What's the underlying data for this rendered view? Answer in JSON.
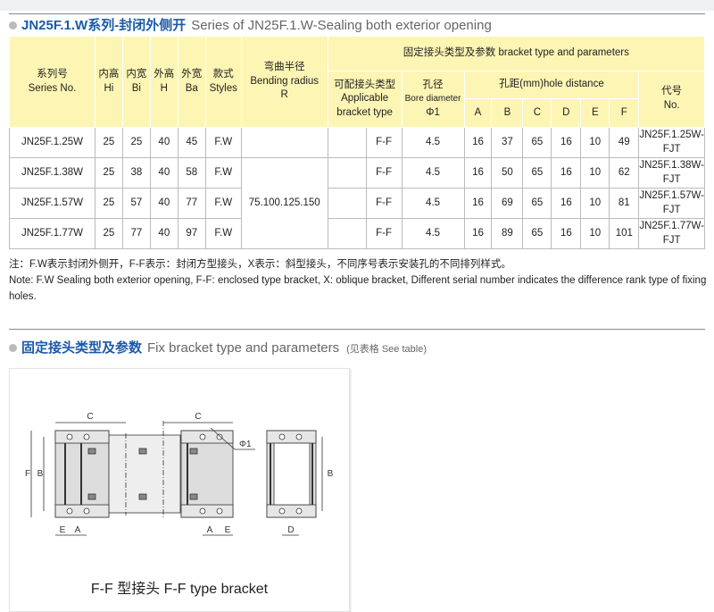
{
  "section1": {
    "title_cn": "JN25F.1.W系列-封闭外侧开",
    "title_en": "Series of JN25F.1.W-Sealing both exterior opening"
  },
  "table": {
    "headers": {
      "series": "系列号",
      "series_en": "Series No.",
      "hi": "内高",
      "hi_en": "Hi",
      "bi": "内宽",
      "bi_en": "Bi",
      "h": "外高",
      "h_en": "H",
      "ba": "外宽",
      "ba_en": "Ba",
      "styles": "款式",
      "styles_en": "Styles",
      "r": "弯曲半径",
      "r_en": "Bending radius",
      "r_sym": "R",
      "bracket": "固定接头类型及参数 bracket type and parameters",
      "applicable": "可配接头类型",
      "applicable_en": "Applicable bracket type",
      "bore": "孔径",
      "bore_en": "Bore diameter",
      "bore_sym": "Φ1",
      "hole": "孔距(mm)hole distance",
      "a": "A",
      "b": "B",
      "c": "C",
      "d": "D",
      "e": "E",
      "f": "F",
      "no": "代号",
      "no_en": "No."
    },
    "radius": "75.100.125.150",
    "rows": [
      {
        "series": "JN25F.1.25W",
        "hi": "25",
        "bi": "25",
        "h": "40",
        "ba": "45",
        "style": "F.W",
        "type": "F-F",
        "bore": "4.5",
        "a": "16",
        "b": "37",
        "c": "65",
        "d": "16",
        "e": "10",
        "f": "49",
        "no": "JN25F.1.25W-FJT"
      },
      {
        "series": "JN25F.1.38W",
        "hi": "25",
        "bi": "38",
        "h": "40",
        "ba": "58",
        "style": "F.W",
        "type": "F-F",
        "bore": "4.5",
        "a": "16",
        "b": "50",
        "c": "65",
        "d": "16",
        "e": "10",
        "f": "62",
        "no": "JN25F.1.38W-FJT"
      },
      {
        "series": "JN25F.1.57W",
        "hi": "25",
        "bi": "57",
        "h": "40",
        "ba": "77",
        "style": "F.W",
        "type": "F-F",
        "bore": "4.5",
        "a": "16",
        "b": "69",
        "c": "65",
        "d": "16",
        "e": "10",
        "f": "81",
        "no": "JN25F.1.57W-FJT"
      },
      {
        "series": "JN25F.1.77W",
        "hi": "25",
        "bi": "77",
        "h": "40",
        "ba": "97",
        "style": "F.W",
        "type": "F-F",
        "bore": "4.5",
        "a": "16",
        "b": "89",
        "c": "65",
        "d": "16",
        "e": "10",
        "f": "101",
        "no": "JN25F.1.77W-FJT"
      }
    ]
  },
  "notes": {
    "cn": "注：F.W表示封闭外侧开，F-F表示：封闭方型接头，X表示：斜型接头，不同序号表示安装孔的不同排列样式。",
    "en": "Note: F.W Sealing both exterior opening, F-F: enclosed type bracket, X: oblique bracket, Different serial number indicates the difference rank type of fixing holes."
  },
  "section2": {
    "title_cn": "固定接头类型及参数",
    "title_en": "Fix bracket type and parameters",
    "see": "(见表格 See table)"
  },
  "diagram": {
    "labels": {
      "c": "C",
      "f": "F",
      "b": "B",
      "e": "E",
      "a": "A",
      "d": "D",
      "phi": "Φ1"
    },
    "caption": "F-F 型接头  F-F type bracket"
  },
  "colors": {
    "title_blue": "#1a5aa8",
    "header_yellow": "#fdf5b4"
  }
}
